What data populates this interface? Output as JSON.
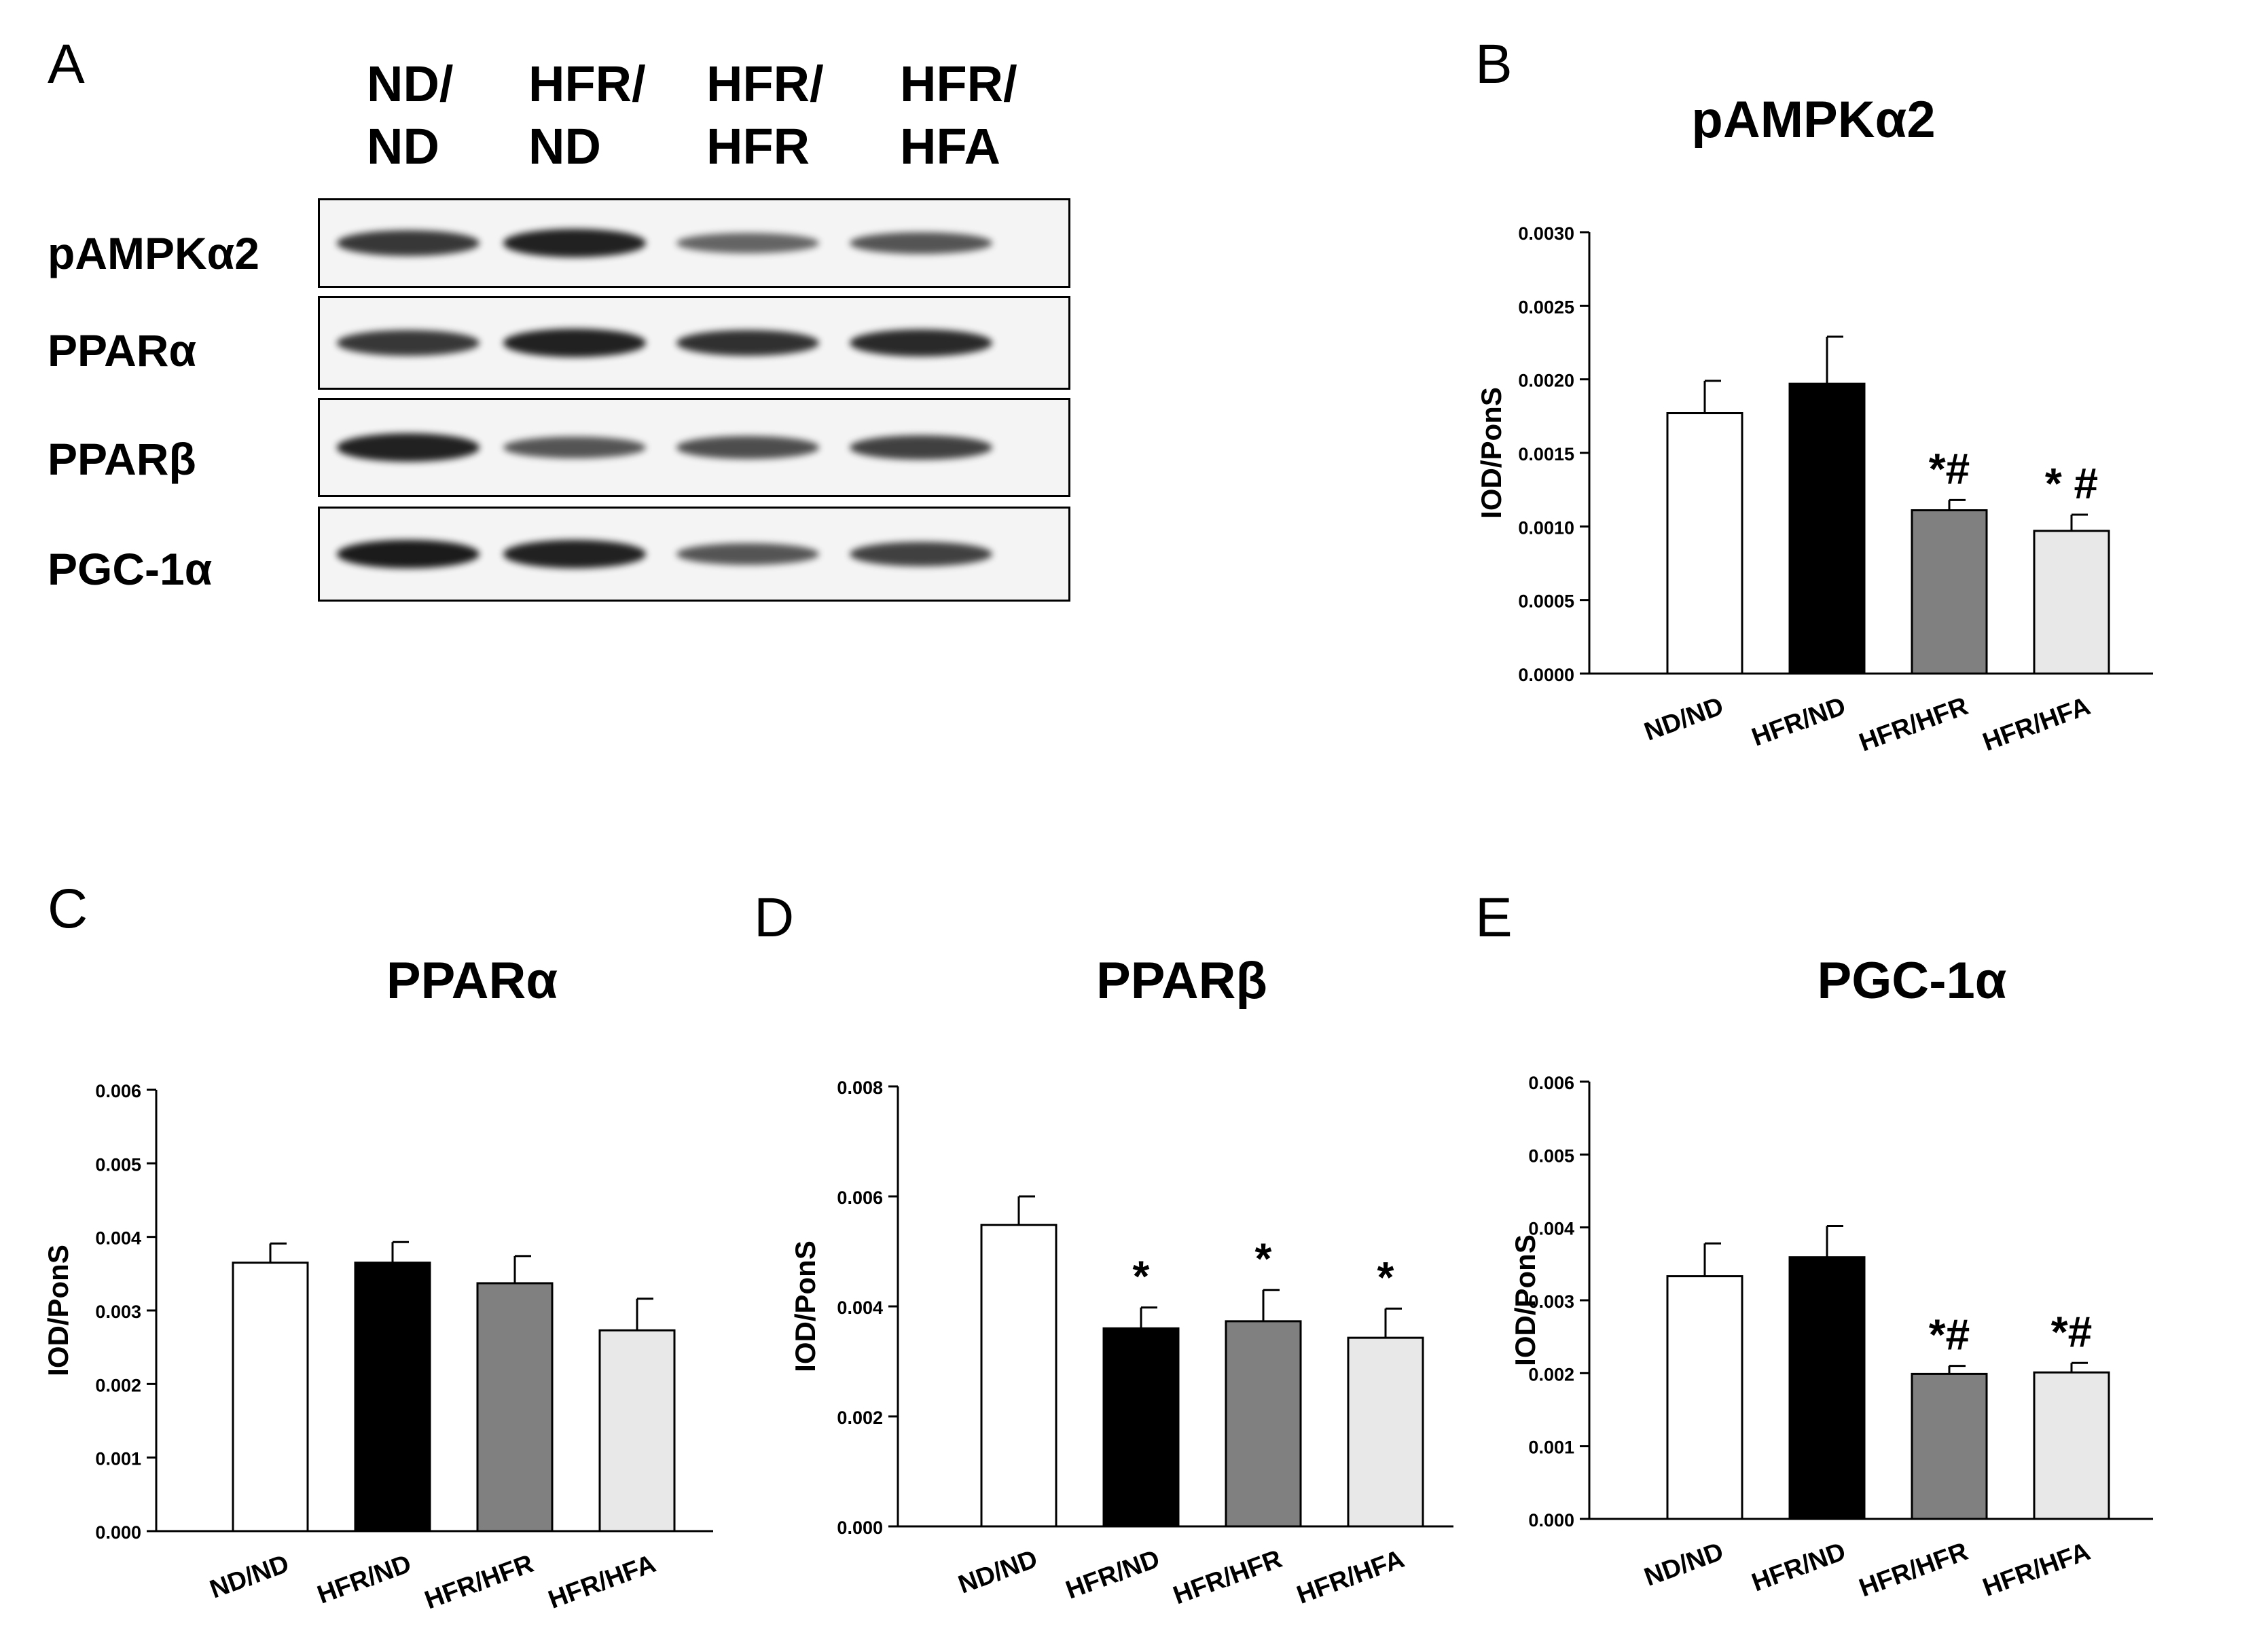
{
  "panels": {
    "A": "A",
    "B": "B",
    "C": "C",
    "D": "D",
    "E": "E"
  },
  "blot": {
    "lanes": [
      {
        "line1": "ND/",
        "line2": "ND"
      },
      {
        "line1": "HFR/",
        "line2": "ND"
      },
      {
        "line1": "HFR/",
        "line2": "HFR"
      },
      {
        "line1": "HFR/",
        "line2": "HFA"
      }
    ],
    "rows": [
      {
        "label": "pAMPKα2",
        "band_intensity": [
          0.75,
          0.9,
          0.45,
          0.55
        ]
      },
      {
        "label": "PPARα",
        "band_intensity": [
          0.75,
          0.9,
          0.8,
          0.85
        ]
      },
      {
        "label": "PPARβ",
        "band_intensity": [
          0.9,
          0.55,
          0.6,
          0.7
        ]
      },
      {
        "label": "PGC-1α",
        "band_intensity": [
          0.95,
          0.9,
          0.55,
          0.7
        ]
      }
    ]
  },
  "colors": {
    "bar_fills": [
      "#ffffff",
      "#000000",
      "#808080",
      "#e8e8e8"
    ],
    "band": "#141414"
  },
  "chart_data": [
    {
      "panel": "B",
      "type": "bar",
      "title": "pAMPKα2",
      "ylabel": "IOD/PonS",
      "categories": [
        "ND/ND",
        "HFR/ND",
        "HFR/HFR",
        "HFR/HFA"
      ],
      "values": [
        0.00177,
        0.00197,
        0.00111,
        0.00097
      ],
      "errors": [
        0.00022,
        0.00032,
        7e-05,
        0.00011
      ],
      "annotations": [
        "",
        "",
        "*#",
        "* #"
      ],
      "ylim": [
        0,
        0.003
      ],
      "yticks": [
        "0.0000",
        "0.0005",
        "0.0010",
        "0.0015",
        "0.0020",
        "0.0025",
        "0.0030"
      ]
    },
    {
      "panel": "C",
      "type": "bar",
      "title": "PPARα",
      "ylabel": "IOD/PonS",
      "categories": [
        "ND/ND",
        "HFR/ND",
        "HFR/HFR",
        "HFR/HFA"
      ],
      "values": [
        0.00365,
        0.00365,
        0.00337,
        0.00273
      ],
      "errors": [
        0.00026,
        0.00028,
        0.00037,
        0.00043
      ],
      "annotations": [
        "",
        "",
        "",
        ""
      ],
      "ylim": [
        0,
        0.006
      ],
      "yticks": [
        "0.000",
        "0.001",
        "0.002",
        "0.003",
        "0.004",
        "0.005",
        "0.006"
      ]
    },
    {
      "panel": "D",
      "type": "bar",
      "title": "PPARβ",
      "ylabel": "IOD/PonS",
      "categories": [
        "ND/ND",
        "HFR/ND",
        "HFR/HFR",
        "HFR/HFA"
      ],
      "values": [
        0.00548,
        0.0036,
        0.00373,
        0.00343
      ],
      "errors": [
        0.00052,
        0.00038,
        0.00057,
        0.00053
      ],
      "annotations": [
        "",
        "*",
        "*",
        "*"
      ],
      "ylim": [
        0,
        0.008
      ],
      "yticks": [
        "0.000",
        "0.002",
        "0.004",
        "0.006",
        "0.008"
      ]
    },
    {
      "panel": "E",
      "type": "bar",
      "title": "PGC-1α",
      "ylabel": "IOD/PonS",
      "categories": [
        "ND/ND",
        "HFR/ND",
        "HFR/HFR",
        "HFR/HFA"
      ],
      "values": [
        0.00333,
        0.00359,
        0.00199,
        0.00201
      ],
      "errors": [
        0.00045,
        0.00043,
        0.00011,
        0.00013
      ],
      "annotations": [
        "",
        "",
        "*#",
        "*#"
      ],
      "ylim": [
        0,
        0.006
      ],
      "yticks": [
        "0.000",
        "0.001",
        "0.002",
        "0.003",
        "0.004",
        "0.005",
        "0.006"
      ]
    }
  ]
}
